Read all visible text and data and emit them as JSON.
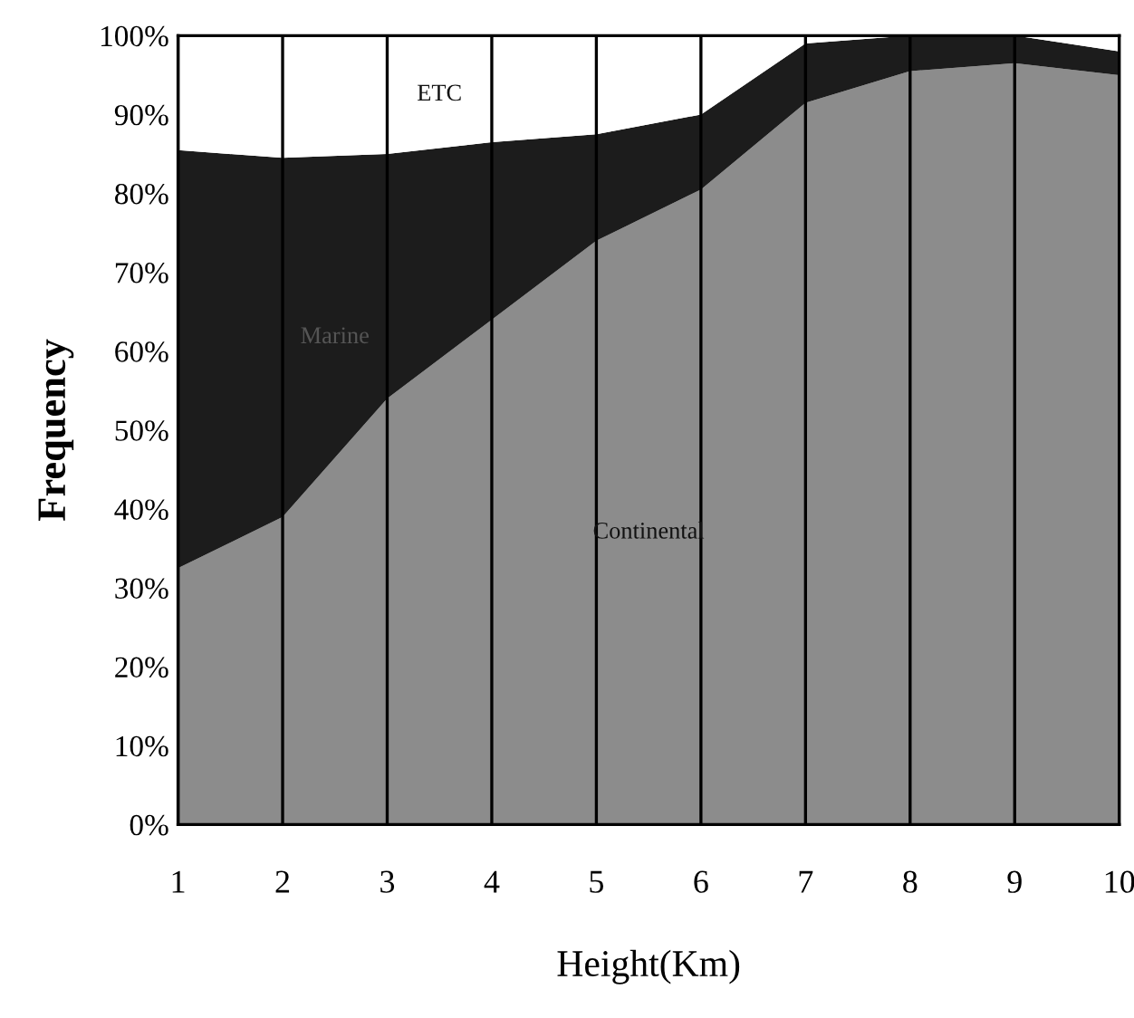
{
  "chart_data": {
    "type": "area",
    "stacked": true,
    "xlabel": "Height(Km)",
    "ylabel": "Frequency",
    "x": [
      1,
      2,
      3,
      4,
      5,
      6,
      7,
      8,
      9,
      10
    ],
    "series": [
      {
        "name": "Continental",
        "color": "#8c8c8c",
        "values": [
          32.5,
          39,
          54,
          64,
          74,
          80.5,
          91.5,
          95.5,
          96.5,
          95
        ]
      },
      {
        "name": "Marine",
        "color": "#1c1c1c",
        "values": [
          53,
          45.5,
          31,
          22.5,
          13.5,
          9.5,
          7.5,
          4.5,
          3.5,
          3
        ]
      },
      {
        "name": "ETC",
        "color": "#ffffff",
        "values": [
          14.5,
          15.5,
          15,
          13.5,
          12.5,
          10,
          1,
          0,
          0,
          2
        ]
      }
    ],
    "xlim": [
      1,
      10
    ],
    "xticks": [
      1,
      2,
      3,
      4,
      5,
      6,
      7,
      8,
      9,
      10
    ],
    "ylim": [
      0,
      100
    ],
    "yticks": [
      {
        "value": 0,
        "label": "0%"
      },
      {
        "value": 10,
        "label": "10%"
      },
      {
        "value": 20,
        "label": "20%"
      },
      {
        "value": 30,
        "label": "30%"
      },
      {
        "value": 40,
        "label": "40%"
      },
      {
        "value": 50,
        "label": "50%"
      },
      {
        "value": 60,
        "label": "60%"
      },
      {
        "value": 70,
        "label": "70%"
      },
      {
        "value": 80,
        "label": "80%"
      },
      {
        "value": 90,
        "label": "90%"
      },
      {
        "value": 100,
        "label": "100%"
      }
    ],
    "grid": "x",
    "legend": false
  }
}
